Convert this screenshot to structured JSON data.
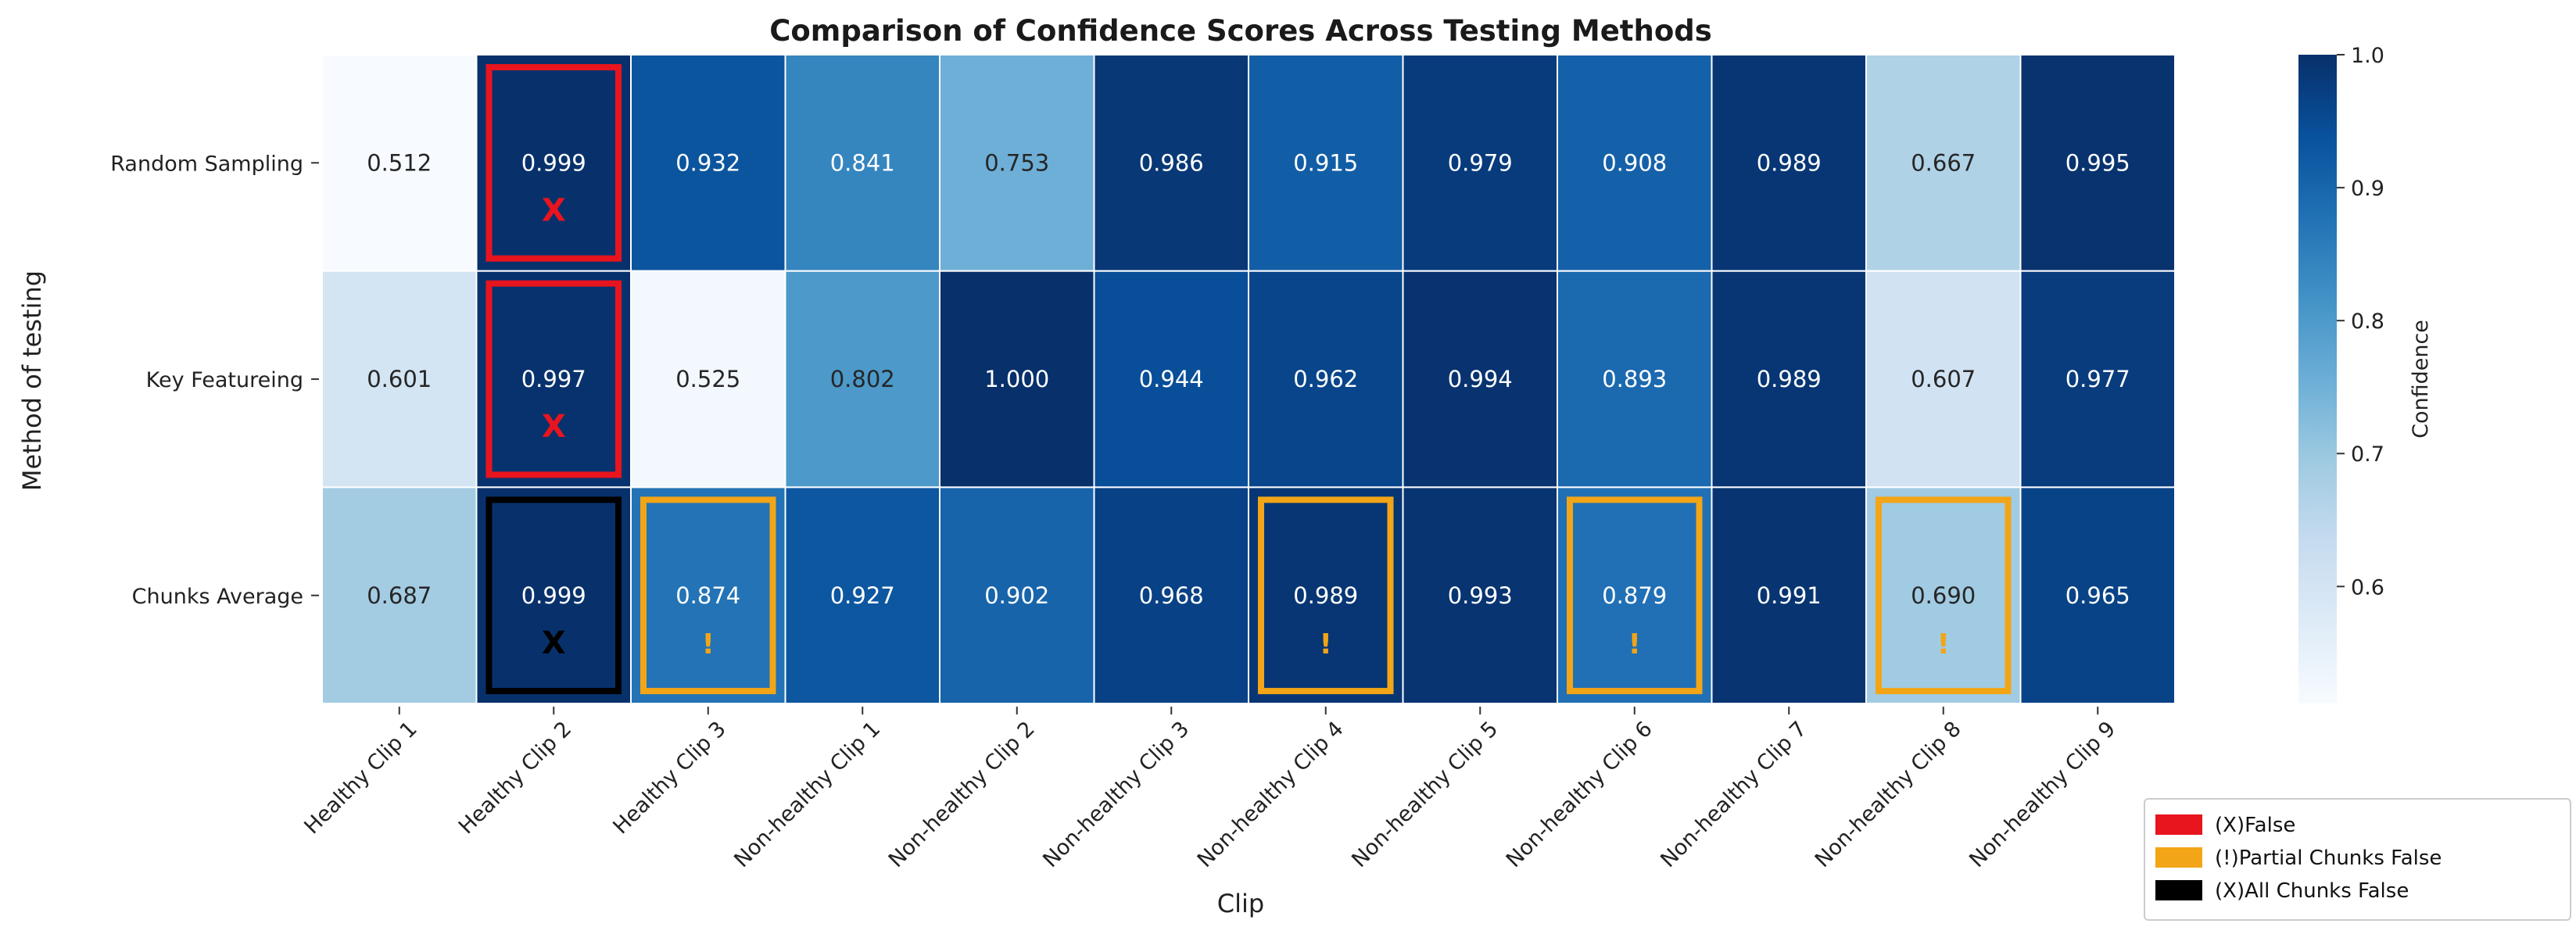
{
  "chart_data": {
    "type": "heatmap",
    "title": "Comparison of Confidence Scores Across Testing Methods",
    "xlabel": "Clip",
    "ylabel": "Method of testing",
    "colorbar_label": "Confidence",
    "colorbar_range": [
      0.512,
      1.0
    ],
    "colorbar_ticks": [
      "0.6",
      "0.7",
      "0.8",
      "0.9",
      "1.0"
    ],
    "colormap": "Blues",
    "rows": [
      "Random Sampling",
      "Key Featureing",
      "Chunks Average"
    ],
    "columns": [
      "Healthy Clip 1",
      "Healthy Clip 2",
      "Healthy Clip 3",
      "Non-healthy Clip 1",
      "Non-healthy Clip 2",
      "Non-healthy Clip 3",
      "Non-healthy Clip 4",
      "Non-healthy Clip 5",
      "Non-healthy Clip 6",
      "Non-healthy Clip 7",
      "Non-healthy Clip 8",
      "Non-healthy Clip 9"
    ],
    "healthy_columns": [
      0,
      1,
      2
    ],
    "values": [
      [
        0.512,
        0.999,
        0.932,
        0.841,
        0.753,
        0.986,
        0.915,
        0.979,
        0.908,
        0.989,
        0.667,
        0.995
      ],
      [
        0.601,
        0.997,
        0.525,
        0.802,
        1.0,
        0.944,
        0.962,
        0.994,
        0.893,
        0.989,
        0.607,
        0.977
      ],
      [
        0.687,
        0.999,
        0.874,
        0.927,
        0.902,
        0.968,
        0.989,
        0.993,
        0.879,
        0.991,
        0.69,
        0.965
      ]
    ],
    "cell_labels": [
      [
        "0.512",
        "0.999",
        "0.932",
        "0.841",
        "0.753",
        "0.986",
        "0.915",
        "0.979",
        "0.908",
        "0.989",
        "0.667",
        "0.995"
      ],
      [
        "0.601",
        "0.997",
        "0.525",
        "0.802",
        "1.000",
        "0.944",
        "0.962",
        "0.994",
        "0.893",
        "0.989",
        "0.607",
        "0.977"
      ],
      [
        "0.687",
        "0.999",
        "0.874",
        "0.927",
        "0.902",
        "0.968",
        "0.989",
        "0.993",
        "0.879",
        "0.991",
        "0.690",
        "0.965"
      ]
    ],
    "annotations": [
      {
        "row": 0,
        "col": 1,
        "kind": "false",
        "marker": "X"
      },
      {
        "row": 1,
        "col": 1,
        "kind": "false",
        "marker": "X"
      },
      {
        "row": 2,
        "col": 1,
        "kind": "all_false",
        "marker": "X"
      },
      {
        "row": 2,
        "col": 2,
        "kind": "partial",
        "marker": "!"
      },
      {
        "row": 2,
        "col": 6,
        "kind": "partial",
        "marker": "!"
      },
      {
        "row": 2,
        "col": 8,
        "kind": "partial",
        "marker": "!"
      },
      {
        "row": 2,
        "col": 10,
        "kind": "partial",
        "marker": "!"
      }
    ],
    "legend": {
      "placement": "bottom-right",
      "entries": [
        {
          "kind": "false",
          "label": "(X)False"
        },
        {
          "kind": "partial",
          "label": "(!)Partial Chunks False"
        },
        {
          "kind": "all_false",
          "label": "(X)All Chunks False"
        }
      ]
    },
    "colors": {
      "false": "#e8141e",
      "partial": "#f2a516",
      "all_false": "#000000",
      "healthy_label": "#2ea02e",
      "label_text": "#111111"
    }
  }
}
